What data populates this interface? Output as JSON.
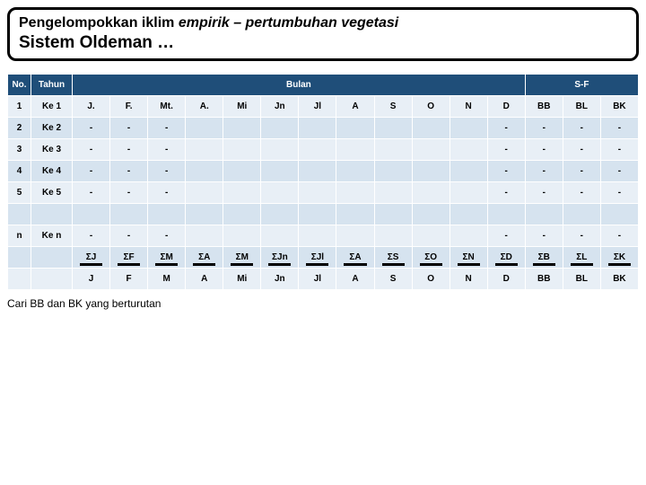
{
  "title": {
    "segment1": "Pengelompokkan iklim ",
    "segment2": "empirik – pertumbuhan vegetasi",
    "line2": "Sistem Oldeman …"
  },
  "headers": {
    "no": "No.",
    "tahun": "Tahun",
    "bulan": "Bulan",
    "sf": "S-F"
  },
  "month_cols": [
    "J.",
    "F.",
    "Mt.",
    "A.",
    "Mi",
    "Jn",
    "Jl",
    "A",
    "S",
    "O",
    "N",
    "D"
  ],
  "sf_cols": [
    "BB",
    "BL",
    "BK"
  ],
  "rows": [
    {
      "no": "1",
      "tahun": "Ke 1",
      "months": [
        "J.",
        "F.",
        "Mt.",
        "A.",
        "Mi",
        "Jn",
        "Jl",
        "A",
        "S",
        "O",
        "N",
        "D"
      ],
      "sf": [
        "BB",
        "BL",
        "BK"
      ]
    },
    {
      "no": "2",
      "tahun": "Ke 2",
      "months": [
        "-",
        "-",
        "-",
        "",
        "",
        "",
        "",
        "",
        "",
        "",
        "",
        "-"
      ],
      "sf": [
        "-",
        "-",
        "-"
      ]
    },
    {
      "no": "3",
      "tahun": "Ke 3",
      "months": [
        "-",
        "-",
        "-",
        "",
        "",
        "",
        "",
        "",
        "",
        "",
        "",
        "-"
      ],
      "sf": [
        "-",
        "-",
        "-"
      ]
    },
    {
      "no": "4",
      "tahun": "Ke 4",
      "months": [
        "-",
        "-",
        "-",
        "",
        "",
        "",
        "",
        "",
        "",
        "",
        "",
        "-"
      ],
      "sf": [
        "-",
        "-",
        "-"
      ]
    },
    {
      "no": "5",
      "tahun": "Ke 5",
      "months": [
        "-",
        "-",
        "-",
        "",
        "",
        "",
        "",
        "",
        "",
        "",
        "",
        "-"
      ],
      "sf": [
        "-",
        "-",
        "-"
      ]
    },
    {
      "no": "",
      "tahun": "",
      "months": [
        "",
        "",
        "",
        "",
        "",
        "",
        "",
        "",
        "",
        "",
        "",
        ""
      ],
      "sf": [
        "",
        "",
        ""
      ]
    },
    {
      "no": "n",
      "tahun": "Ke n",
      "months": [
        "-",
        "-",
        "-",
        "",
        "",
        "",
        "",
        "",
        "",
        "",
        "",
        "-"
      ],
      "sf": [
        "-",
        "-",
        "-"
      ]
    }
  ],
  "sigma_row": {
    "months": [
      "ΣJ",
      "ΣF",
      "ΣM",
      "ΣA",
      "ΣM",
      "ΣJn",
      "ΣJl",
      "ΣA",
      "ΣS",
      "ΣO",
      "ΣN",
      "ΣD"
    ],
    "sf": [
      "ΣB",
      "ΣL",
      "ΣK"
    ]
  },
  "mean_row": {
    "months": [
      "J",
      "F",
      "M",
      "A",
      "Mi",
      "Jn",
      "Jl",
      "A",
      "S",
      "O",
      "N",
      "D"
    ],
    "sf": [
      "BB",
      "BL",
      "BK"
    ]
  },
  "footer": "Cari  BB dan BK yang berturutan",
  "styling": {
    "border_color": "#000000",
    "header_bg": "#1f4e79",
    "header_fg": "#ffffff",
    "row_bg_a": "#e8eff6",
    "row_bg_b": "#d6e3ef",
    "title_border_radius": 10,
    "title_border_width": 3,
    "cell_font_size": 10,
    "title_font_size_1": 16,
    "title_font_size_2": 19,
    "cell_border_color": "#ffffff"
  }
}
